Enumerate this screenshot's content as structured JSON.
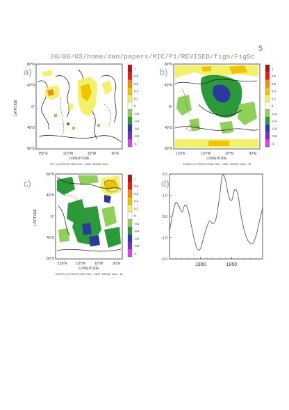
{
  "page_number": "5",
  "header_path": "20/08/03/home/dan/papers/MIC/P1/REVISED/figs/Fig5c",
  "colorbar_labels": [
    "1",
    "0.8",
    "0.6",
    "0.4",
    "0.2",
    "0",
    "-0.2",
    "-0.4",
    "-0.6",
    "-0.8",
    "-1"
  ],
  "colorbar_colors": [
    "#a31b1b",
    "#e02020",
    "#f08a18",
    "#f2c400",
    "#f3f06a",
    "#ffffff",
    "#8fd05a",
    "#2d9a3a",
    "#2a3a9f",
    "#7a2fb0",
    "#d54ad8"
  ],
  "map_panels": [
    {
      "id": "a",
      "panel_label": "a)",
      "lat_labels": [
        "80°N",
        "40°N",
        "0°",
        "40°S",
        "80°S"
      ],
      "lon_labels": [
        "150°E",
        "110°W",
        "10°W",
        "90°E"
      ],
      "xlabel": "LONGITUDE",
      "ylabel": "LATITUDE",
      "caption": "SST on LPRDTDTTNAL70M - 7.5M0 - BDNQF index"
    },
    {
      "id": "b",
      "panel_label": "b)",
      "lat_labels": [
        "80°N",
        "40°N",
        "0°",
        "40°S",
        "80°S"
      ],
      "lon_labels": [
        "150°E",
        "110°W",
        "10°W",
        "90°E"
      ],
      "xlabel": "LONGITUDE",
      "ylabel": "",
      "caption": "GridSLP on LPRDTDTTNAL70M - 7.5M0 - BDNQF index - 4ff"
    },
    {
      "id": "c",
      "panel_label": "c)",
      "lat_labels": [
        "80°N",
        "40°N",
        "0°",
        "40°S",
        "80°S"
      ],
      "lon_labels": [
        "150°E",
        "110°W",
        "10°W",
        "90°E"
      ],
      "xlabel": "LONGITUDE",
      "ylabel": "LATITUDE",
      "caption": "GMSLP on LPRDTDTTNAL70M - 7.5M0 - BDNQF index - 4ff"
    }
  ],
  "chart_data": {
    "type": "line",
    "panel_label": "d)",
    "title": "",
    "xlabel": "",
    "ylabel": "",
    "xlim": [
      1850,
      2000
    ],
    "ylim": [
      -2.0,
      2.0
    ],
    "x_ticks": [
      1900,
      1950
    ],
    "y_ticks": [
      "2.0",
      "1.0",
      "0.0",
      "-1.0",
      "-2.0"
    ],
    "x": [
      1850,
      1855,
      1860,
      1865,
      1870,
      1875,
      1880,
      1885,
      1890,
      1895,
      1900,
      1905,
      1910,
      1915,
      1920,
      1925,
      1930,
      1935,
      1940,
      1945,
      1950,
      1955,
      1960,
      1965,
      1970,
      1975,
      1980,
      1985,
      1990,
      1995,
      2000
    ],
    "series": [
      {
        "values": [
          -0.7,
          0.1,
          0.65,
          0.5,
          0.2,
          0.55,
          0.3,
          -0.4,
          -1.1,
          -1.55,
          -1.5,
          -1.0,
          -0.5,
          -0.2,
          -0.35,
          -0.1,
          0.8,
          1.9,
          1.75,
          1.0,
          0.75,
          1.25,
          1.05,
          0.1,
          -0.6,
          -1.05,
          -1.25,
          -1.25,
          -0.85,
          -0.2,
          0.4
        ]
      }
    ]
  }
}
